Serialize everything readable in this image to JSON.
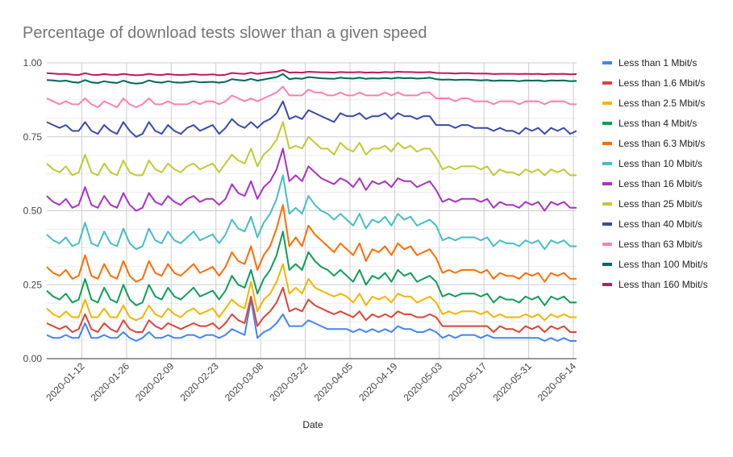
{
  "chart_data": {
    "type": "line",
    "title": "Percentage of download tests slower than a given speed",
    "xlabel": "Date",
    "ylabel": "",
    "ylim": [
      0,
      1
    ],
    "xlim": [
      "2020-01-01",
      "2020-06-15"
    ],
    "yticks": [
      "0.00",
      "0.25",
      "0.50",
      "0.75",
      "1.00"
    ],
    "xticks": [
      "2020-01-12",
      "2020-01-26",
      "2020-02-09",
      "2020-02-23",
      "2020-03-08",
      "2020-03-22",
      "2020-04-05",
      "2020-04-19",
      "2020-05-03",
      "2020-05-17",
      "2020-05-31",
      "2020-06-14"
    ],
    "grid": true,
    "legend_position": "right",
    "x": [
      "2020-01-01",
      "2020-01-03",
      "2020-01-05",
      "2020-01-07",
      "2020-01-09",
      "2020-01-11",
      "2020-01-13",
      "2020-01-15",
      "2020-01-17",
      "2020-01-19",
      "2020-01-21",
      "2020-01-23",
      "2020-01-25",
      "2020-01-27",
      "2020-01-29",
      "2020-01-31",
      "2020-02-02",
      "2020-02-04",
      "2020-02-06",
      "2020-02-08",
      "2020-02-10",
      "2020-02-12",
      "2020-02-14",
      "2020-02-16",
      "2020-02-18",
      "2020-02-20",
      "2020-02-22",
      "2020-02-24",
      "2020-02-26",
      "2020-02-28",
      "2020-03-01",
      "2020-03-03",
      "2020-03-05",
      "2020-03-07",
      "2020-03-09",
      "2020-03-11",
      "2020-03-13",
      "2020-03-15",
      "2020-03-17",
      "2020-03-19",
      "2020-03-21",
      "2020-03-23",
      "2020-03-25",
      "2020-03-27",
      "2020-03-29",
      "2020-03-31",
      "2020-04-02",
      "2020-04-04",
      "2020-04-06",
      "2020-04-08",
      "2020-04-10",
      "2020-04-12",
      "2020-04-14",
      "2020-04-16",
      "2020-04-18",
      "2020-04-20",
      "2020-04-22",
      "2020-04-24",
      "2020-04-26",
      "2020-04-28",
      "2020-04-30",
      "2020-05-02",
      "2020-05-04",
      "2020-05-06",
      "2020-05-08",
      "2020-05-10",
      "2020-05-12",
      "2020-05-14",
      "2020-05-16",
      "2020-05-18",
      "2020-05-20",
      "2020-05-22",
      "2020-05-24",
      "2020-05-26",
      "2020-05-28",
      "2020-05-30",
      "2020-06-01",
      "2020-06-03",
      "2020-06-05",
      "2020-06-07",
      "2020-06-09",
      "2020-06-11",
      "2020-06-13",
      "2020-06-15"
    ],
    "series": [
      {
        "name": "Less than 1 Mbit/s",
        "color": "#4285f4",
        "values": [
          0.08,
          0.07,
          0.07,
          0.08,
          0.07,
          0.07,
          0.12,
          0.07,
          0.07,
          0.08,
          0.07,
          0.07,
          0.09,
          0.07,
          0.06,
          0.07,
          0.09,
          0.07,
          0.07,
          0.08,
          0.07,
          0.07,
          0.08,
          0.08,
          0.07,
          0.08,
          0.08,
          0.07,
          0.08,
          0.1,
          0.09,
          0.08,
          0.2,
          0.07,
          0.09,
          0.1,
          0.12,
          0.15,
          0.11,
          0.11,
          0.11,
          0.13,
          0.12,
          0.11,
          0.1,
          0.1,
          0.1,
          0.1,
          0.09,
          0.1,
          0.09,
          0.1,
          0.09,
          0.1,
          0.09,
          0.11,
          0.1,
          0.1,
          0.09,
          0.09,
          0.1,
          0.09,
          0.07,
          0.08,
          0.07,
          0.08,
          0.08,
          0.08,
          0.07,
          0.08,
          0.07,
          0.07,
          0.07,
          0.07,
          0.07,
          0.07,
          0.07,
          0.07,
          0.06,
          0.07,
          0.06,
          0.07,
          0.06,
          0.06
        ]
      },
      {
        "name": "Less than 1.6 Mbit/s",
        "color": "#db4437",
        "values": [
          0.12,
          0.11,
          0.1,
          0.11,
          0.09,
          0.1,
          0.15,
          0.1,
          0.09,
          0.12,
          0.1,
          0.09,
          0.13,
          0.1,
          0.09,
          0.09,
          0.13,
          0.11,
          0.1,
          0.12,
          0.11,
          0.1,
          0.11,
          0.12,
          0.11,
          0.11,
          0.12,
          0.1,
          0.12,
          0.15,
          0.13,
          0.12,
          0.21,
          0.11,
          0.14,
          0.16,
          0.19,
          0.24,
          0.16,
          0.17,
          0.16,
          0.2,
          0.18,
          0.17,
          0.16,
          0.15,
          0.16,
          0.15,
          0.14,
          0.16,
          0.13,
          0.15,
          0.14,
          0.15,
          0.14,
          0.16,
          0.15,
          0.15,
          0.14,
          0.14,
          0.15,
          0.14,
          0.11,
          0.11,
          0.11,
          0.11,
          0.11,
          0.11,
          0.11,
          0.11,
          0.09,
          0.11,
          0.1,
          0.1,
          0.09,
          0.11,
          0.1,
          0.11,
          0.09,
          0.11,
          0.1,
          0.11,
          0.09,
          0.09
        ]
      },
      {
        "name": "Less than 2.5 Mbit/s",
        "color": "#f4b400",
        "values": [
          0.17,
          0.15,
          0.14,
          0.16,
          0.14,
          0.14,
          0.2,
          0.14,
          0.14,
          0.17,
          0.14,
          0.14,
          0.18,
          0.14,
          0.13,
          0.14,
          0.18,
          0.15,
          0.14,
          0.17,
          0.15,
          0.14,
          0.16,
          0.17,
          0.15,
          0.16,
          0.17,
          0.14,
          0.17,
          0.2,
          0.18,
          0.17,
          0.26,
          0.16,
          0.2,
          0.22,
          0.26,
          0.32,
          0.22,
          0.24,
          0.22,
          0.27,
          0.24,
          0.23,
          0.22,
          0.21,
          0.22,
          0.21,
          0.19,
          0.22,
          0.18,
          0.21,
          0.2,
          0.21,
          0.19,
          0.22,
          0.21,
          0.21,
          0.19,
          0.2,
          0.21,
          0.19,
          0.15,
          0.16,
          0.15,
          0.16,
          0.16,
          0.16,
          0.15,
          0.16,
          0.14,
          0.15,
          0.14,
          0.14,
          0.14,
          0.15,
          0.14,
          0.15,
          0.13,
          0.15,
          0.14,
          0.15,
          0.14,
          0.14
        ]
      },
      {
        "name": "Less than 4 Mbit/s",
        "color": "#0f9d58",
        "values": [
          0.23,
          0.21,
          0.2,
          0.22,
          0.19,
          0.2,
          0.27,
          0.2,
          0.19,
          0.24,
          0.2,
          0.19,
          0.25,
          0.2,
          0.18,
          0.19,
          0.25,
          0.21,
          0.2,
          0.24,
          0.21,
          0.2,
          0.22,
          0.24,
          0.21,
          0.22,
          0.23,
          0.2,
          0.23,
          0.28,
          0.25,
          0.24,
          0.3,
          0.22,
          0.27,
          0.3,
          0.35,
          0.43,
          0.3,
          0.32,
          0.3,
          0.36,
          0.33,
          0.31,
          0.3,
          0.28,
          0.3,
          0.28,
          0.26,
          0.3,
          0.25,
          0.28,
          0.27,
          0.29,
          0.26,
          0.3,
          0.28,
          0.29,
          0.26,
          0.27,
          0.28,
          0.26,
          0.21,
          0.22,
          0.21,
          0.22,
          0.22,
          0.22,
          0.21,
          0.22,
          0.19,
          0.21,
          0.2,
          0.2,
          0.19,
          0.21,
          0.2,
          0.21,
          0.18,
          0.21,
          0.2,
          0.21,
          0.19,
          0.19
        ]
      },
      {
        "name": "Less than 6.3 Mbit/s",
        "color": "#ff6d00",
        "values": [
          0.31,
          0.29,
          0.28,
          0.3,
          0.27,
          0.28,
          0.35,
          0.28,
          0.27,
          0.32,
          0.28,
          0.27,
          0.33,
          0.28,
          0.26,
          0.27,
          0.33,
          0.29,
          0.28,
          0.32,
          0.29,
          0.28,
          0.3,
          0.32,
          0.29,
          0.3,
          0.31,
          0.28,
          0.31,
          0.36,
          0.33,
          0.32,
          0.38,
          0.3,
          0.35,
          0.38,
          0.44,
          0.52,
          0.38,
          0.41,
          0.38,
          0.45,
          0.42,
          0.4,
          0.38,
          0.36,
          0.39,
          0.37,
          0.35,
          0.39,
          0.33,
          0.37,
          0.36,
          0.38,
          0.35,
          0.39,
          0.37,
          0.38,
          0.35,
          0.36,
          0.37,
          0.34,
          0.29,
          0.3,
          0.29,
          0.3,
          0.3,
          0.3,
          0.29,
          0.3,
          0.27,
          0.29,
          0.28,
          0.28,
          0.27,
          0.29,
          0.28,
          0.29,
          0.26,
          0.29,
          0.28,
          0.29,
          0.27,
          0.27
        ]
      },
      {
        "name": "Less than 10 Mbit/s",
        "color": "#46bdc6",
        "values": [
          0.42,
          0.4,
          0.39,
          0.41,
          0.38,
          0.39,
          0.46,
          0.39,
          0.38,
          0.43,
          0.39,
          0.38,
          0.44,
          0.39,
          0.37,
          0.38,
          0.44,
          0.4,
          0.39,
          0.43,
          0.4,
          0.39,
          0.41,
          0.43,
          0.4,
          0.41,
          0.42,
          0.39,
          0.42,
          0.47,
          0.44,
          0.43,
          0.48,
          0.41,
          0.46,
          0.49,
          0.54,
          0.62,
          0.49,
          0.51,
          0.49,
          0.55,
          0.52,
          0.5,
          0.49,
          0.47,
          0.49,
          0.47,
          0.45,
          0.49,
          0.44,
          0.47,
          0.46,
          0.48,
          0.45,
          0.49,
          0.47,
          0.48,
          0.45,
          0.46,
          0.47,
          0.45,
          0.4,
          0.41,
          0.4,
          0.41,
          0.41,
          0.41,
          0.4,
          0.41,
          0.38,
          0.4,
          0.39,
          0.39,
          0.38,
          0.4,
          0.39,
          0.4,
          0.37,
          0.4,
          0.39,
          0.4,
          0.38,
          0.38
        ]
      },
      {
        "name": "Less than 16 Mbit/s",
        "color": "#ab30c4",
        "values": [
          0.55,
          0.53,
          0.52,
          0.54,
          0.51,
          0.52,
          0.58,
          0.52,
          0.51,
          0.55,
          0.52,
          0.51,
          0.56,
          0.52,
          0.5,
          0.51,
          0.56,
          0.53,
          0.52,
          0.55,
          0.53,
          0.52,
          0.54,
          0.55,
          0.53,
          0.54,
          0.54,
          0.52,
          0.54,
          0.59,
          0.56,
          0.55,
          0.6,
          0.54,
          0.58,
          0.6,
          0.64,
          0.71,
          0.6,
          0.62,
          0.6,
          0.65,
          0.63,
          0.61,
          0.6,
          0.59,
          0.61,
          0.6,
          0.58,
          0.61,
          0.57,
          0.6,
          0.59,
          0.6,
          0.58,
          0.61,
          0.6,
          0.6,
          0.58,
          0.59,
          0.6,
          0.57,
          0.53,
          0.54,
          0.53,
          0.54,
          0.54,
          0.54,
          0.53,
          0.54,
          0.51,
          0.53,
          0.52,
          0.52,
          0.51,
          0.53,
          0.52,
          0.53,
          0.5,
          0.53,
          0.52,
          0.53,
          0.51,
          0.51
        ]
      },
      {
        "name": "Less than 25 Mbit/s",
        "color": "#c0ca33",
        "values": [
          0.66,
          0.64,
          0.63,
          0.65,
          0.62,
          0.63,
          0.69,
          0.63,
          0.62,
          0.66,
          0.63,
          0.62,
          0.67,
          0.63,
          0.62,
          0.62,
          0.67,
          0.64,
          0.63,
          0.66,
          0.64,
          0.63,
          0.65,
          0.66,
          0.64,
          0.65,
          0.66,
          0.63,
          0.66,
          0.69,
          0.67,
          0.66,
          0.71,
          0.65,
          0.69,
          0.71,
          0.74,
          0.8,
          0.71,
          0.72,
          0.71,
          0.75,
          0.73,
          0.71,
          0.71,
          0.69,
          0.73,
          0.71,
          0.7,
          0.73,
          0.69,
          0.71,
          0.71,
          0.72,
          0.7,
          0.73,
          0.71,
          0.72,
          0.7,
          0.71,
          0.71,
          0.68,
          0.64,
          0.65,
          0.64,
          0.65,
          0.65,
          0.65,
          0.64,
          0.65,
          0.62,
          0.64,
          0.63,
          0.63,
          0.62,
          0.64,
          0.63,
          0.64,
          0.62,
          0.64,
          0.63,
          0.64,
          0.62,
          0.62
        ]
      },
      {
        "name": "Less than 40 Mbit/s",
        "color": "#3949ab",
        "values": [
          0.8,
          0.79,
          0.78,
          0.79,
          0.77,
          0.77,
          0.8,
          0.77,
          0.76,
          0.79,
          0.77,
          0.76,
          0.8,
          0.77,
          0.75,
          0.76,
          0.8,
          0.77,
          0.76,
          0.79,
          0.77,
          0.76,
          0.78,
          0.79,
          0.77,
          0.78,
          0.79,
          0.76,
          0.78,
          0.81,
          0.79,
          0.78,
          0.8,
          0.78,
          0.8,
          0.81,
          0.83,
          0.87,
          0.81,
          0.82,
          0.81,
          0.84,
          0.83,
          0.82,
          0.81,
          0.8,
          0.83,
          0.82,
          0.82,
          0.83,
          0.81,
          0.82,
          0.82,
          0.83,
          0.81,
          0.83,
          0.82,
          0.82,
          0.81,
          0.82,
          0.82,
          0.79,
          0.79,
          0.79,
          0.78,
          0.79,
          0.79,
          0.78,
          0.78,
          0.78,
          0.77,
          0.78,
          0.77,
          0.77,
          0.76,
          0.78,
          0.77,
          0.78,
          0.76,
          0.78,
          0.77,
          0.78,
          0.76,
          0.77
        ]
      },
      {
        "name": "Less than 63 Mbit/s",
        "color": "#ff80ab",
        "values": [
          0.88,
          0.87,
          0.86,
          0.87,
          0.86,
          0.86,
          0.88,
          0.86,
          0.85,
          0.87,
          0.86,
          0.85,
          0.88,
          0.86,
          0.85,
          0.86,
          0.88,
          0.86,
          0.86,
          0.87,
          0.86,
          0.86,
          0.86,
          0.87,
          0.86,
          0.87,
          0.87,
          0.86,
          0.87,
          0.89,
          0.88,
          0.87,
          0.88,
          0.87,
          0.88,
          0.89,
          0.9,
          0.92,
          0.89,
          0.89,
          0.89,
          0.91,
          0.9,
          0.9,
          0.89,
          0.89,
          0.9,
          0.89,
          0.89,
          0.9,
          0.89,
          0.89,
          0.89,
          0.9,
          0.89,
          0.9,
          0.89,
          0.89,
          0.89,
          0.9,
          0.9,
          0.88,
          0.88,
          0.88,
          0.87,
          0.88,
          0.88,
          0.87,
          0.87,
          0.87,
          0.86,
          0.87,
          0.87,
          0.87,
          0.86,
          0.87,
          0.87,
          0.87,
          0.86,
          0.87,
          0.87,
          0.87,
          0.86,
          0.86
        ]
      },
      {
        "name": "Less than 100 Mbit/s",
        "color": "#00695c",
        "values": [
          0.942,
          0.941,
          0.938,
          0.94,
          0.935,
          0.933,
          0.942,
          0.934,
          0.932,
          0.938,
          0.934,
          0.932,
          0.94,
          0.933,
          0.93,
          0.932,
          0.941,
          0.935,
          0.933,
          0.938,
          0.934,
          0.933,
          0.935,
          0.938,
          0.934,
          0.935,
          0.936,
          0.933,
          0.936,
          0.945,
          0.942,
          0.94,
          0.946,
          0.94,
          0.944,
          0.948,
          0.952,
          0.962,
          0.945,
          0.948,
          0.946,
          0.952,
          0.95,
          0.948,
          0.947,
          0.946,
          0.95,
          0.948,
          0.947,
          0.95,
          0.946,
          0.948,
          0.947,
          0.949,
          0.947,
          0.95,
          0.948,
          0.949,
          0.947,
          0.948,
          0.95,
          0.945,
          0.943,
          0.944,
          0.942,
          0.943,
          0.943,
          0.942,
          0.941,
          0.942,
          0.939,
          0.941,
          0.94,
          0.94,
          0.938,
          0.941,
          0.94,
          0.941,
          0.938,
          0.941,
          0.94,
          0.941,
          0.938,
          0.939
        ]
      },
      {
        "name": "Less than 160 Mbit/s",
        "color": "#c2185b",
        "values": [
          0.965,
          0.964,
          0.962,
          0.963,
          0.96,
          0.959,
          0.965,
          0.96,
          0.959,
          0.962,
          0.96,
          0.959,
          0.963,
          0.96,
          0.958,
          0.959,
          0.963,
          0.96,
          0.959,
          0.962,
          0.96,
          0.959,
          0.96,
          0.962,
          0.96,
          0.96,
          0.961,
          0.958,
          0.96,
          0.966,
          0.964,
          0.963,
          0.967,
          0.963,
          0.966,
          0.968,
          0.97,
          0.976,
          0.967,
          0.968,
          0.967,
          0.97,
          0.969,
          0.968,
          0.968,
          0.967,
          0.969,
          0.968,
          0.968,
          0.969,
          0.967,
          0.968,
          0.967,
          0.969,
          0.968,
          0.97,
          0.969,
          0.969,
          0.968,
          0.968,
          0.969,
          0.966,
          0.965,
          0.965,
          0.964,
          0.965,
          0.965,
          0.964,
          0.964,
          0.964,
          0.962,
          0.963,
          0.963,
          0.963,
          0.962,
          0.963,
          0.962,
          0.963,
          0.961,
          0.963,
          0.962,
          0.963,
          0.961,
          0.962
        ]
      }
    ]
  }
}
